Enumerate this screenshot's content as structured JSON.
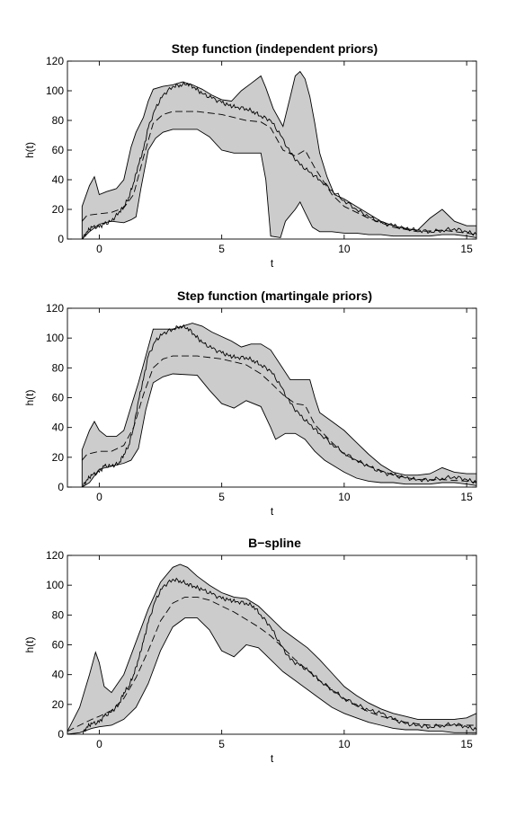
{
  "chart_data": [
    {
      "type": "area",
      "title": "Step function (independent priors)",
      "xlabel": "t",
      "ylabel": "h(t)",
      "xlim": [
        -1.3,
        15.4
      ],
      "ylim": [
        0,
        120
      ],
      "xticks": [
        0,
        5,
        10,
        15
      ],
      "yticks": [
        0,
        20,
        40,
        60,
        80,
        100,
        120
      ],
      "grid": false,
      "series": [
        {
          "role": "observed",
          "x": [
            -0.7,
            -0.5,
            -0.3,
            0,
            0.2,
            0.5,
            0.8,
            1,
            1.2,
            1.4,
            1.6,
            1.8,
            2,
            2.3,
            2.6,
            3,
            3.3,
            3.6,
            3.9,
            4.2,
            4.6,
            5,
            5.3,
            5.6,
            6,
            6.3,
            6.6,
            7,
            7.4,
            7.8,
            8.2,
            8.6,
            9,
            9.5,
            10,
            10.5,
            11,
            11.5,
            12,
            12.5,
            13,
            13.5,
            14,
            14.5,
            15,
            15.4
          ],
          "y": [
            0,
            5,
            8,
            8,
            10,
            12,
            18,
            22,
            28,
            38,
            50,
            60,
            75,
            88,
            97,
            103,
            104,
            105,
            102,
            98,
            95,
            92,
            90,
            89,
            88,
            86,
            83,
            80,
            70,
            58,
            50,
            45,
            40,
            33,
            26,
            20,
            15,
            11,
            9,
            7,
            6,
            5,
            6,
            7,
            5,
            3
          ]
        },
        {
          "role": "mean",
          "x": [
            -0.7,
            -0.5,
            0,
            0.5,
            1,
            1.4,
            1.8,
            2.2,
            2.6,
            3,
            4,
            5,
            6,
            6.6,
            7,
            7.5,
            8,
            8.4,
            8.8,
            9.5,
            10,
            11,
            12,
            13,
            14,
            15,
            15.4
          ],
          "y": [
            12,
            16,
            17,
            18,
            21,
            30,
            55,
            78,
            84,
            86,
            86,
            84,
            80,
            79,
            75,
            60,
            56,
            60,
            48,
            30,
            22,
            14,
            8,
            5,
            6,
            4,
            3
          ]
        },
        {
          "role": "upper",
          "x": [
            -0.7,
            -0.4,
            -0.2,
            0,
            0.3,
            0.7,
            1.0,
            1.3,
            1.5,
            1.8,
            2.0,
            2.2,
            2.6,
            3.0,
            3.4,
            3.8,
            4.2,
            4.6,
            5.0,
            5.4,
            5.8,
            6.2,
            6.6,
            6.8,
            7.1,
            7.5,
            7.8,
            8.0,
            8.2,
            8.4,
            8.6,
            8.8,
            9.0,
            9.3,
            9.6,
            10,
            10.5,
            11,
            11.5,
            12,
            12.5,
            13,
            13.5,
            14,
            14.5,
            15,
            15.4
          ],
          "y": [
            22,
            36,
            42,
            30,
            32,
            34,
            40,
            62,
            72,
            82,
            93,
            101,
            103,
            104,
            106,
            104,
            101,
            97,
            94,
            93,
            100,
            105,
            110,
            102,
            88,
            76,
            96,
            110,
            113,
            108,
            96,
            78,
            58,
            42,
            30,
            27,
            22,
            17,
            12,
            9,
            7,
            6,
            14,
            20,
            12,
            9,
            9
          ]
        },
        {
          "role": "lower",
          "x": [
            -0.7,
            -0.4,
            0,
            0.5,
            1,
            1.3,
            1.5,
            1.7,
            2.0,
            2.3,
            2.6,
            3,
            4,
            4.5,
            5,
            5.5,
            6,
            6.6,
            6.8,
            7.0,
            7.4,
            7.6,
            7.8,
            8.0,
            8.2,
            8.4,
            8.7,
            9.0,
            9.5,
            10,
            10.5,
            11,
            11.5,
            12,
            12.5,
            13,
            13.5,
            14,
            14.5,
            15,
            15.4
          ],
          "y": [
            0,
            5,
            10,
            12,
            11,
            13,
            15,
            34,
            60,
            68,
            72,
            74,
            74,
            69,
            60,
            58,
            58,
            58,
            40,
            2,
            1,
            12,
            16,
            20,
            25,
            18,
            8,
            5,
            5,
            4,
            4,
            3,
            3,
            2,
            2,
            2,
            2,
            3,
            3,
            2,
            1
          ]
        }
      ]
    },
    {
      "type": "area",
      "title": "Step function (martingale priors)",
      "xlabel": "t",
      "ylabel": "h(t)",
      "xlim": [
        -1.3,
        15.4
      ],
      "ylim": [
        0,
        120
      ],
      "xticks": [
        0,
        5,
        10,
        15
      ],
      "yticks": [
        0,
        20,
        40,
        60,
        80,
        100,
        120
      ],
      "grid": false,
      "series": [
        {
          "role": "observed",
          "x": [
            -0.7,
            -0.5,
            -0.3,
            0,
            0.2,
            0.5,
            0.8,
            1,
            1.2,
            1.4,
            1.6,
            1.8,
            2,
            2.3,
            2.6,
            3,
            3.3,
            3.6,
            3.9,
            4.2,
            4.6,
            5,
            5.3,
            5.6,
            6,
            6.3,
            6.6,
            7,
            7.4,
            7.8,
            8.2,
            8.6,
            9,
            9.5,
            10,
            10.5,
            11,
            11.5,
            12,
            12.5,
            13,
            13.5,
            14,
            14.5,
            15,
            15.4
          ],
          "y": [
            0,
            5,
            8,
            10,
            14,
            14,
            16,
            22,
            28,
            40,
            58,
            72,
            88,
            98,
            103,
            106,
            108,
            107,
            102,
            97,
            93,
            90,
            88,
            87,
            87,
            85,
            82,
            78,
            68,
            56,
            48,
            42,
            36,
            29,
            23,
            18,
            14,
            10,
            8,
            6,
            5,
            5,
            6,
            7,
            5,
            3
          ]
        },
        {
          "role": "mean",
          "x": [
            -0.7,
            -0.5,
            0,
            0.5,
            1,
            1.4,
            1.8,
            2.2,
            2.6,
            3,
            4,
            5,
            6,
            6.6,
            7,
            7.5,
            8,
            8.4,
            8.8,
            9.5,
            10,
            11,
            12,
            13,
            14,
            15,
            15.4
          ],
          "y": [
            18,
            22,
            24,
            24,
            28,
            40,
            62,
            80,
            86,
            88,
            88,
            86,
            82,
            76,
            70,
            62,
            56,
            55,
            42,
            30,
            22,
            14,
            8,
            5,
            5,
            4,
            3
          ]
        },
        {
          "role": "upper",
          "x": [
            -0.7,
            -0.4,
            -0.2,
            0,
            0.3,
            0.7,
            1.0,
            1.3,
            1.6,
            1.9,
            2.2,
            2.6,
            3.0,
            3.4,
            3.8,
            4.2,
            4.6,
            5.0,
            5.4,
            5.8,
            6.2,
            6.6,
            7.0,
            7.4,
            7.8,
            8.2,
            8.6,
            8.8,
            9.0,
            9.5,
            10,
            10.5,
            11,
            11.5,
            12,
            12.5,
            13,
            13.5,
            14,
            14.5,
            15,
            15.4
          ],
          "y": [
            25,
            38,
            44,
            38,
            34,
            34,
            38,
            54,
            70,
            88,
            106,
            106,
            106,
            108,
            110,
            108,
            104,
            101,
            98,
            94,
            96,
            96,
            92,
            82,
            72,
            72,
            72,
            60,
            50,
            44,
            38,
            30,
            22,
            15,
            10,
            8,
            8,
            9,
            13,
            10,
            9,
            9
          ]
        },
        {
          "role": "lower",
          "x": [
            -0.7,
            -0.4,
            0,
            0.5,
            1,
            1.3,
            1.6,
            1.9,
            2.2,
            2.6,
            3,
            4,
            4.5,
            5,
            5.5,
            6,
            6.6,
            7,
            7.2,
            7.6,
            8,
            8.4,
            8.8,
            9.2,
            9.6,
            10,
            10.5,
            11,
            11.5,
            12,
            12.5,
            13,
            13.5,
            14,
            14.5,
            15,
            15.4
          ],
          "y": [
            0,
            3,
            12,
            14,
            16,
            18,
            26,
            52,
            70,
            74,
            76,
            75,
            65,
            56,
            53,
            58,
            54,
            40,
            32,
            36,
            36,
            32,
            24,
            18,
            14,
            10,
            6,
            4,
            3,
            3,
            2,
            2,
            2,
            3,
            3,
            2,
            1
          ]
        }
      ]
    },
    {
      "type": "area",
      "title": "B−spline",
      "xlabel": "t",
      "ylabel": "h(t)",
      "xlim": [
        -1.3,
        15.4
      ],
      "ylim": [
        0,
        120
      ],
      "xticks": [
        0,
        5,
        10,
        15
      ],
      "yticks": [
        0,
        20,
        40,
        60,
        80,
        100,
        120
      ],
      "grid": false,
      "series": [
        {
          "role": "observed",
          "x": [
            -0.7,
            -0.5,
            -0.3,
            0,
            0.2,
            0.5,
            0.8,
            1,
            1.2,
            1.4,
            1.6,
            1.8,
            2,
            2.3,
            2.6,
            3,
            3.3,
            3.6,
            3.9,
            4.2,
            4.6,
            5,
            5.3,
            5.6,
            6,
            6.3,
            6.6,
            7,
            7.4,
            7.8,
            8.2,
            8.6,
            9,
            9.5,
            10,
            10.5,
            11,
            11.5,
            12,
            12.5,
            13,
            13.5,
            14,
            14.5,
            15,
            15.4
          ],
          "y": [
            0,
            5,
            7,
            8,
            12,
            15,
            20,
            28,
            32,
            40,
            50,
            62,
            75,
            90,
            99,
            104,
            103,
            101,
            99,
            97,
            94,
            91,
            90,
            89,
            88,
            86,
            80,
            72,
            60,
            50,
            46,
            42,
            36,
            30,
            24,
            20,
            16,
            14,
            10,
            7,
            6,
            5,
            6,
            7,
            5,
            3
          ]
        },
        {
          "role": "mean",
          "x": [
            -1.3,
            -0.8,
            -0.3,
            0,
            0.5,
            1,
            1.5,
            2,
            2.5,
            3,
            3.5,
            4,
            4.5,
            5,
            5.5,
            6,
            6.5,
            7,
            7.5,
            8,
            8.5,
            9,
            9.5,
            10,
            10.5,
            11,
            11.5,
            12,
            12.5,
            13,
            13.5,
            14,
            14.5,
            15,
            15.4
          ],
          "y": [
            2,
            6,
            10,
            12,
            16,
            24,
            38,
            56,
            76,
            88,
            92,
            92,
            90,
            86,
            82,
            77,
            72,
            66,
            58,
            50,
            43,
            36,
            30,
            24,
            19,
            15,
            12,
            10,
            8,
            7,
            6,
            6,
            6,
            6,
            6
          ]
        },
        {
          "role": "upper",
          "x": [
            -1.3,
            -0.8,
            -0.4,
            -0.15,
            0,
            0.2,
            0.5,
            1,
            1.5,
            2,
            2.5,
            3,
            3.3,
            3.6,
            4,
            4.5,
            5,
            5.5,
            6,
            6.5,
            7,
            7.5,
            8,
            8.5,
            9,
            9.5,
            10,
            10.5,
            11,
            11.5,
            12,
            12.5,
            13,
            13.5,
            14,
            14.5,
            15,
            15.4
          ],
          "y": [
            2,
            18,
            40,
            55,
            48,
            32,
            28,
            40,
            62,
            84,
            102,
            112,
            114,
            112,
            106,
            100,
            95,
            92,
            91,
            86,
            78,
            70,
            64,
            58,
            50,
            41,
            32,
            26,
            21,
            17,
            14,
            12,
            10,
            10,
            10,
            10,
            11,
            14
          ]
        },
        {
          "role": "lower",
          "x": [
            -1.3,
            -0.8,
            -0.3,
            0,
            0.5,
            1,
            1.5,
            2,
            2.5,
            3,
            3.5,
            4,
            4.5,
            5,
            5.5,
            6,
            6.5,
            7,
            7.5,
            8,
            8.5,
            9,
            9.5,
            10,
            10.5,
            11,
            11.5,
            12,
            12.5,
            13,
            13.5,
            14,
            14.5,
            15,
            15.4
          ],
          "y": [
            0,
            1,
            4,
            5,
            6,
            10,
            18,
            34,
            56,
            72,
            78,
            78,
            70,
            56,
            52,
            60,
            58,
            50,
            42,
            36,
            30,
            24,
            18,
            14,
            11,
            8,
            6,
            4,
            3,
            3,
            2,
            2,
            1,
            1,
            1
          ]
        }
      ]
    }
  ]
}
